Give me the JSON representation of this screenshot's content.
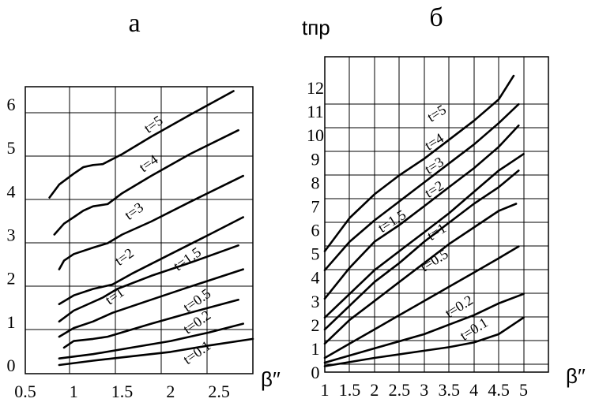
{
  "chart_data": [
    {
      "type": "line",
      "panel_label": "а",
      "xlabel": "β′′",
      "ylabel": "",
      "xlim": [
        0.5,
        2.85
      ],
      "ylim": [
        -0.2,
        6.4
      ],
      "x_ticks": [
        {
          "value": 0.5,
          "label": "0.5"
        },
        {
          "value": 1,
          "label": "1"
        },
        {
          "value": 1.5,
          "label": "1.5"
        },
        {
          "value": 2,
          "label": "2"
        },
        {
          "value": 2.5,
          "label": "2.5"
        }
      ],
      "y_ticks": [
        {
          "value": 0,
          "label": "0"
        },
        {
          "value": 1,
          "label": "1"
        },
        {
          "value": 2,
          "label": "2"
        },
        {
          "value": 3,
          "label": "3"
        },
        {
          "value": 4,
          "label": "4"
        },
        {
          "value": 5,
          "label": "5"
        },
        {
          "value": 6,
          "label": "6"
        }
      ],
      "series": [
        {
          "name": "t=5",
          "label_at": [
            1.85,
            5.45
          ],
          "x": [
            0.75,
            0.85,
            1.0,
            1.1,
            1.2,
            1.3,
            1.5,
            1.8,
            2.2,
            2.65
          ],
          "y": [
            3.85,
            4.15,
            4.4,
            4.55,
            4.6,
            4.62,
            4.85,
            5.25,
            5.75,
            6.3
          ]
        },
        {
          "name": "t=4",
          "label_at": [
            1.8,
            4.55
          ],
          "x": [
            0.8,
            0.9,
            1.0,
            1.1,
            1.2,
            1.35,
            1.5,
            1.8,
            2.2,
            2.7
          ],
          "y": [
            3.0,
            3.25,
            3.4,
            3.55,
            3.65,
            3.7,
            3.95,
            4.35,
            4.85,
            5.4
          ]
        },
        {
          "name": "t=3",
          "label_at": [
            1.65,
            3.45
          ],
          "x": [
            0.85,
            0.9,
            1.0,
            1.2,
            1.35,
            1.5,
            1.8,
            2.2,
            2.75
          ],
          "y": [
            2.2,
            2.4,
            2.55,
            2.7,
            2.8,
            3.0,
            3.3,
            3.75,
            4.35
          ]
        },
        {
          "name": "t=2",
          "label_at": [
            1.55,
            2.4
          ],
          "x": [
            0.85,
            1.0,
            1.2,
            1.4,
            1.6,
            2.0,
            2.4,
            2.75
          ],
          "y": [
            1.4,
            1.6,
            1.75,
            1.85,
            2.1,
            2.55,
            3.0,
            3.4
          ]
        },
        {
          "name": "t=1.5",
          "label_at": [
            2.2,
            2.35
          ],
          "x": [
            0.85,
            1.0,
            1.2,
            1.3,
            1.45,
            1.8,
            2.2,
            2.7
          ],
          "y": [
            1.0,
            1.25,
            1.45,
            1.55,
            1.75,
            2.05,
            2.35,
            2.75
          ]
        },
        {
          "name": "t=1",
          "label_at": [
            1.45,
            1.5
          ],
          "x": [
            0.85,
            1.0,
            1.2,
            1.4,
            1.8,
            2.2,
            2.75
          ],
          "y": [
            0.65,
            0.85,
            1.0,
            1.2,
            1.5,
            1.8,
            2.2
          ]
        },
        {
          "name": "t=0.5",
          "label_at": [
            2.3,
            1.4
          ],
          "x": [
            0.9,
            1.0,
            1.2,
            1.35,
            1.5,
            1.8,
            2.2,
            2.7
          ],
          "y": [
            0.4,
            0.55,
            0.6,
            0.65,
            0.75,
            0.95,
            1.2,
            1.5
          ]
        },
        {
          "name": "t=0.2",
          "label_at": [
            2.3,
            0.9
          ],
          "x": [
            0.85,
            1.2,
            1.6,
            2.0,
            2.4,
            2.75
          ],
          "y": [
            0.15,
            0.25,
            0.4,
            0.55,
            0.75,
            0.95
          ]
        },
        {
          "name": "t=0.1",
          "label_at": [
            2.3,
            0.2
          ],
          "x": [
            0.85,
            1.2,
            1.6,
            2.0,
            2.4,
            2.85
          ],
          "y": [
            0.0,
            0.1,
            0.2,
            0.3,
            0.45,
            0.6
          ]
        }
      ]
    },
    {
      "type": "line",
      "panel_label": "б",
      "xlabel": "β′′",
      "ylabel": "tпр",
      "xlim": [
        1,
        5.5
      ],
      "ylim": [
        0,
        13.3
      ],
      "x_ticks": [
        {
          "value": 1,
          "label": "1"
        },
        {
          "value": 1.5,
          "label": "1.5"
        },
        {
          "value": 2,
          "label": "2"
        },
        {
          "value": 2.5,
          "label": "2.5"
        },
        {
          "value": 3,
          "label": "3"
        },
        {
          "value": 3.5,
          "label": "3.5"
        },
        {
          "value": 4,
          "label": "4"
        },
        {
          "value": 4.5,
          "label": "4.5"
        },
        {
          "value": 5,
          "label": "5"
        }
      ],
      "y_ticks": [
        {
          "value": 0,
          "label": "0"
        },
        {
          "value": 1,
          "label": "1"
        },
        {
          "value": 2,
          "label": "2"
        },
        {
          "value": 3,
          "label": "3"
        },
        {
          "value": 4,
          "label": "4"
        },
        {
          "value": 5,
          "label": "5"
        },
        {
          "value": 6,
          "label": "6"
        },
        {
          "value": 7,
          "label": "7"
        },
        {
          "value": 8,
          "label": "8"
        },
        {
          "value": 9,
          "label": "9"
        },
        {
          "value": 10,
          "label": "10"
        },
        {
          "value": 11,
          "label": "11"
        },
        {
          "value": 12,
          "label": "12"
        }
      ],
      "series": [
        {
          "name": "t=5",
          "label_at": [
            3.3,
            10.75
          ],
          "x": [
            1.0,
            1.5,
            2.0,
            2.5,
            3.0,
            3.5,
            4.0,
            4.5,
            4.8
          ],
          "y": [
            5.1,
            6.5,
            7.5,
            8.3,
            9.0,
            9.8,
            10.6,
            11.5,
            12.5
          ]
        },
        {
          "name": "t=4",
          "label_at": [
            3.25,
            9.55
          ],
          "x": [
            1.0,
            1.5,
            2.0,
            2.5,
            3.0,
            3.5,
            4.0,
            4.5,
            4.9
          ],
          "y": [
            4.3,
            5.5,
            6.4,
            7.2,
            8.0,
            8.8,
            9.6,
            10.5,
            11.3
          ]
        },
        {
          "name": "t=3",
          "label_at": [
            3.25,
            8.55
          ],
          "x": [
            1.0,
            1.5,
            2.0,
            2.5,
            3.0,
            3.5,
            4.0,
            4.5,
            4.9
          ],
          "y": [
            3.1,
            4.4,
            5.5,
            6.2,
            7.0,
            7.8,
            8.6,
            9.5,
            10.4
          ]
        },
        {
          "name": "t=2",
          "label_at": [
            3.25,
            7.55
          ],
          "x": [
            1.0,
            1.5,
            2.0,
            2.5,
            3.0,
            3.5,
            4.0,
            4.5,
            5.0
          ],
          "y": [
            2.3,
            3.3,
            4.3,
            5.1,
            5.9,
            6.7,
            7.6,
            8.5,
            9.2
          ]
        },
        {
          "name": "t=1.5",
          "label_at": [
            2.4,
            6.2
          ],
          "x": [
            1.0,
            1.5,
            2.0,
            2.5,
            3.0,
            3.5,
            4.0,
            4.5,
            4.9
          ],
          "y": [
            1.8,
            2.8,
            3.8,
            4.6,
            5.5,
            6.3,
            7.1,
            7.8,
            8.5
          ]
        },
        {
          "name": "t=1",
          "label_at": [
            3.3,
            5.75
          ],
          "x": [
            1.0,
            1.5,
            2.0,
            2.5,
            3.0,
            3.5,
            4.0,
            4.5,
            4.85
          ],
          "y": [
            1.2,
            2.2,
            3.0,
            3.8,
            4.6,
            5.4,
            6.1,
            6.8,
            7.1
          ]
        },
        {
          "name": "t=0.5",
          "label_at": [
            3.25,
            4.55
          ],
          "x": [
            1.0,
            1.5,
            2.0,
            2.5,
            3.0,
            3.5,
            4.0,
            4.5,
            4.9
          ],
          "y": [
            0.6,
            1.2,
            1.8,
            2.4,
            3.0,
            3.6,
            4.2,
            4.8,
            5.3
          ]
        },
        {
          "name": "t=0.2",
          "label_at": [
            3.75,
            2.6
          ],
          "x": [
            1.0,
            2.0,
            3.0,
            3.5,
            4.0,
            4.5,
            5.0
          ],
          "y": [
            0.4,
            1.0,
            1.6,
            2.0,
            2.4,
            2.9,
            3.3
          ]
        },
        {
          "name": "t=0.1",
          "label_at": [
            4.05,
            1.65
          ],
          "x": [
            1.0,
            2.0,
            3.0,
            3.5,
            4.0,
            4.5,
            5.0
          ],
          "y": [
            0.25,
            0.6,
            0.9,
            1.05,
            1.25,
            1.6,
            2.3
          ]
        }
      ]
    }
  ]
}
